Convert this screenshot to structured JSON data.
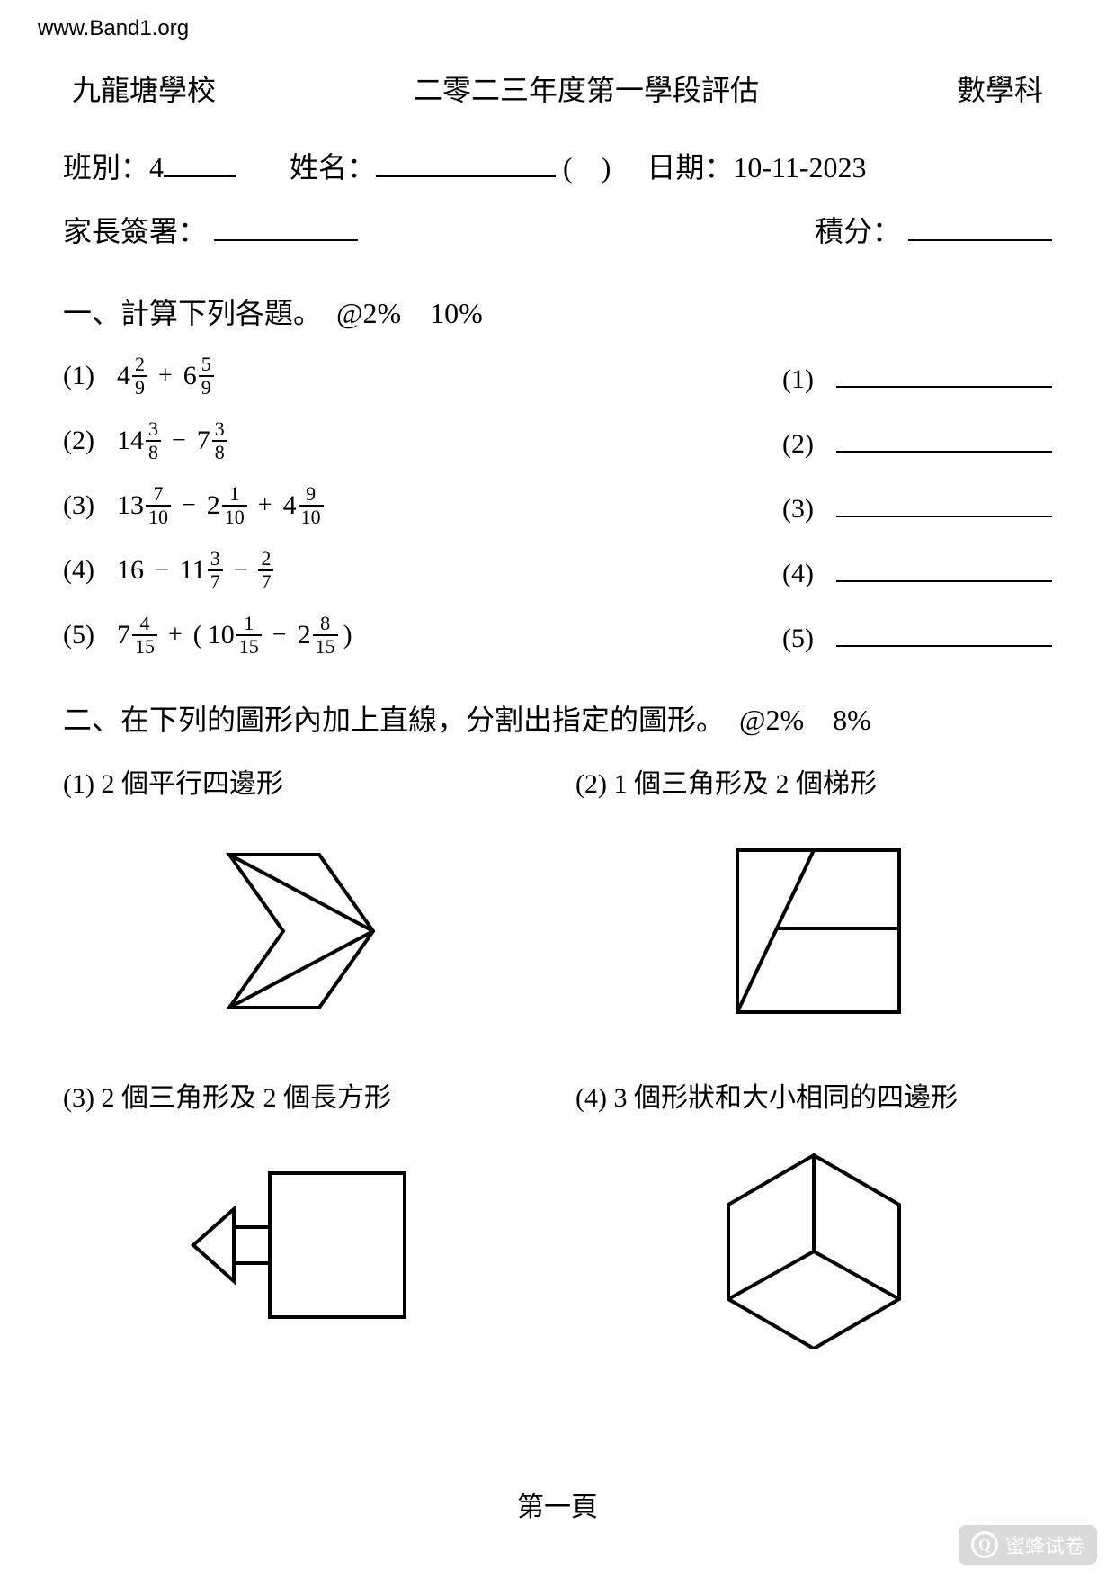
{
  "watermark_url": "www.Band1.org",
  "header": {
    "school": "九龍塘學校",
    "title": "二零二三年度第一學段評估",
    "subject": "數學科"
  },
  "info": {
    "class_label": "班別：",
    "class_value": "4",
    "name_label": "姓名：",
    "paren": "(　)",
    "date_label": "日期：",
    "date_value": "10-11-2023",
    "parent_sig_label": "家長簽署：",
    "score_label": "積分："
  },
  "section1": {
    "title": "一、計算下列各題。　@2%　10%",
    "items": [
      {
        "num": "(1)",
        "expr": [
          {
            "type": "mixed",
            "whole": "4",
            "n": "2",
            "d": "9"
          },
          {
            "type": "op",
            "v": "+"
          },
          {
            "type": "mixed",
            "whole": "6",
            "n": "5",
            "d": "9"
          }
        ],
        "ans": "(1)"
      },
      {
        "num": "(2)",
        "expr": [
          {
            "type": "mixed",
            "whole": "14",
            "n": "3",
            "d": "8"
          },
          {
            "type": "op",
            "v": "−"
          },
          {
            "type": "mixed",
            "whole": "7",
            "n": "3",
            "d": "8"
          }
        ],
        "ans": "(2)"
      },
      {
        "num": "(3)",
        "expr": [
          {
            "type": "mixed",
            "whole": "13",
            "n": "7",
            "d": "10"
          },
          {
            "type": "op",
            "v": "−"
          },
          {
            "type": "mixed",
            "whole": "2",
            "n": "1",
            "d": "10"
          },
          {
            "type": "op",
            "v": "+"
          },
          {
            "type": "mixed",
            "whole": "4",
            "n": "9",
            "d": "10"
          }
        ],
        "ans": "(3)"
      },
      {
        "num": "(4)",
        "expr": [
          {
            "type": "plain",
            "v": "16"
          },
          {
            "type": "op",
            "v": "−"
          },
          {
            "type": "mixed",
            "whole": "11",
            "n": "3",
            "d": "7"
          },
          {
            "type": "op",
            "v": "−"
          },
          {
            "type": "frac",
            "n": "2",
            "d": "7"
          }
        ],
        "ans": "(4)"
      },
      {
        "num": "(5)",
        "expr": [
          {
            "type": "mixed",
            "whole": "7",
            "n": "4",
            "d": "15"
          },
          {
            "type": "op",
            "v": "+"
          },
          {
            "type": "plain",
            "v": "("
          },
          {
            "type": "mixed",
            "whole": "10",
            "n": "1",
            "d": "15"
          },
          {
            "type": "op",
            "v": "−"
          },
          {
            "type": "mixed",
            "whole": "2",
            "n": "8",
            "d": "15"
          },
          {
            "type": "plain",
            "v": ")"
          }
        ],
        "ans": "(5)"
      }
    ]
  },
  "section2": {
    "title": "二、在下列的圖形內加上直線，分割出指定的圖形。　@2%　8%",
    "items": [
      {
        "label": "(1) 2 個平行四邊形",
        "figure": "chevron"
      },
      {
        "label": "(2) 1 個三角形及 2 個梯形",
        "figure": "square_lines"
      },
      {
        "label": "(3) 2 個三角形及 2 個長方形",
        "figure": "arrow_box"
      },
      {
        "label": "(4) 3 個形狀和大小相同的四邊形",
        "figure": "hexagon_y"
      }
    ]
  },
  "footer": "第一頁",
  "bottom_watermark": "蜜蜂试卷",
  "style": {
    "stroke": "#000000",
    "stroke_width": 4,
    "fill": "none"
  }
}
